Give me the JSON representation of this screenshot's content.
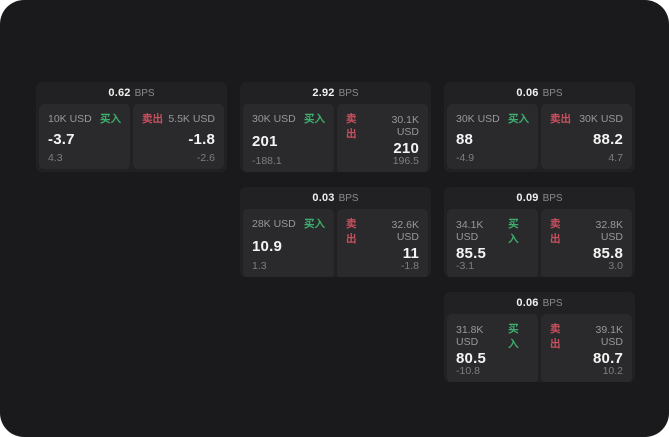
{
  "labels": {
    "buy": "买入",
    "sell": "卖出",
    "bps": "BPS"
  },
  "colors": {
    "window_bg": "#1a1a1c",
    "card_bg": "#212123",
    "panel_bg": "#2a2a2c",
    "buy": "#3eaf6e",
    "sell": "#c9505e",
    "value_text": "#f4f4f4",
    "muted_text": "#98989a"
  },
  "cards": [
    {
      "bps": "0.62",
      "grid": {
        "row": 1,
        "col": 1
      },
      "buy": {
        "amount": "10K USD",
        "value": "-3.7",
        "delta": "4.3"
      },
      "sell": {
        "amount": "5.5K USD",
        "value": "-1.8",
        "delta": "-2.6"
      }
    },
    {
      "bps": "2.92",
      "grid": {
        "row": 1,
        "col": 2
      },
      "buy": {
        "amount": "30K USD",
        "value": "201",
        "delta": "-188.1"
      },
      "sell": {
        "amount": "30.1K USD",
        "value": "210",
        "delta": "196.5"
      }
    },
    {
      "bps": "0.06",
      "grid": {
        "row": 1,
        "col": 3
      },
      "buy": {
        "amount": "30K USD",
        "value": "88",
        "delta": "-4.9"
      },
      "sell": {
        "amount": "30K USD",
        "value": "88.2",
        "delta": "4.7"
      }
    },
    {
      "bps": "0.03",
      "grid": {
        "row": 2,
        "col": 2
      },
      "buy": {
        "amount": "28K USD",
        "value": "10.9",
        "delta": "1.3"
      },
      "sell": {
        "amount": "32.6K USD",
        "value": "11",
        "delta": "-1.8"
      }
    },
    {
      "bps": "0.09",
      "grid": {
        "row": 2,
        "col": 3
      },
      "buy": {
        "amount": "34.1K USD",
        "value": "85.5",
        "delta": "-3.1"
      },
      "sell": {
        "amount": "32.8K USD",
        "value": "85.8",
        "delta": "3.0"
      }
    },
    {
      "bps": "0.06",
      "grid": {
        "row": 3,
        "col": 3
      },
      "buy": {
        "amount": "31.8K USD",
        "value": "80.5",
        "delta": "-10.8"
      },
      "sell": {
        "amount": "39.1K USD",
        "value": "80.7",
        "delta": "10.2"
      }
    }
  ]
}
